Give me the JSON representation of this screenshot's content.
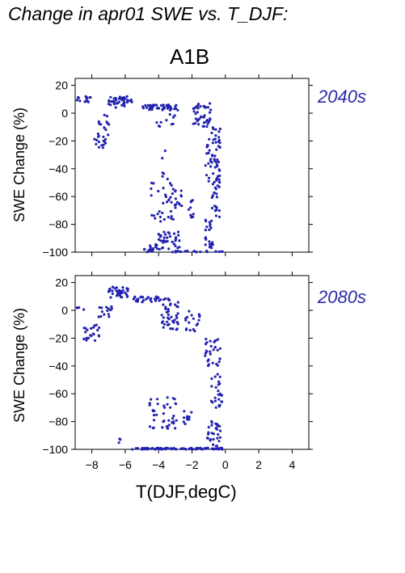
{
  "figure": {
    "title": "Change in apr01 SWE vs. T_DJF:",
    "scenario": "A1B",
    "xlabel": "T(DJF,degC)",
    "ylabel": "SWE Change (%)"
  },
  "colors": {
    "points": "#2222b0",
    "panel_label": "#2a2aa8",
    "axis": "#000000"
  },
  "chart_data": [
    {
      "type": "scatter",
      "panel_label": "2040s",
      "title": "",
      "xlabel": "",
      "ylabel": "SWE Change (%)",
      "xlim": [
        -9,
        5
      ],
      "ylim": [
        -100,
        25
      ],
      "xticks": [
        -8,
        -6,
        -4,
        -2,
        0,
        2,
        4
      ],
      "yticks": [
        20,
        0,
        -20,
        -40,
        -60,
        -80,
        -100
      ],
      "ytick_labels": [
        "20",
        "0",
        "−20",
        "−40",
        "−60",
        "−80",
        "−100"
      ],
      "clusters": [
        {
          "x": [
            -9.0,
            -8.0
          ],
          "y": [
            7,
            12
          ],
          "n": 14
        },
        {
          "x": [
            -8.0,
            -7.0
          ],
          "y": [
            -25,
            -5
          ],
          "n": 20
        },
        {
          "x": [
            -7.0,
            -5.6
          ],
          "y": [
            4,
            12
          ],
          "n": 40
        },
        {
          "x": [
            -7.3,
            -6.9
          ],
          "y": [
            -12,
            0
          ],
          "n": 8
        },
        {
          "x": [
            -5.0,
            -2.8
          ],
          "y": [
            2,
            6
          ],
          "n": 45
        },
        {
          "x": [
            -4.2,
            -2.8
          ],
          "y": [
            -10,
            0
          ],
          "n": 10
        },
        {
          "x": [
            -4.5,
            -2.6
          ],
          "y": [
            -78,
            -50
          ],
          "n": 45
        },
        {
          "x": [
            -3.8,
            -3.4
          ],
          "y": [
            -50,
            -25
          ],
          "n": 6
        },
        {
          "x": [
            -4.2,
            -2.7
          ],
          "y": [
            -98,
            -85
          ],
          "n": 40
        },
        {
          "x": [
            -5.0,
            -4.3
          ],
          "y": [
            -100,
            -95
          ],
          "n": 12
        },
        {
          "x": [
            -2.2,
            -1.9
          ],
          "y": [
            -75,
            -60
          ],
          "n": 10
        },
        {
          "x": [
            -2.0,
            -0.8
          ],
          "y": [
            -10,
            7
          ],
          "n": 40
        },
        {
          "x": [
            -1.2,
            -0.3
          ],
          "y": [
            -50,
            -10
          ],
          "n": 55
        },
        {
          "x": [
            -0.8,
            -0.3
          ],
          "y": [
            -75,
            -45
          ],
          "n": 25
        },
        {
          "x": [
            -1.2,
            -0.7
          ],
          "y": [
            -97,
            -75
          ],
          "n": 22
        },
        {
          "x": [
            -3.2,
            -0.1
          ],
          "y": [
            -100,
            -99
          ],
          "n": 22
        }
      ]
    },
    {
      "type": "scatter",
      "panel_label": "2080s",
      "title": "",
      "xlabel": "T(DJF,degC)",
      "ylabel": "SWE Change (%)",
      "xlim": [
        -9,
        5
      ],
      "ylim": [
        -100,
        25
      ],
      "xticks": [
        -8,
        -6,
        -4,
        -2,
        0,
        2,
        4
      ],
      "xtick_labels": [
        "−8",
        "−6",
        "−4",
        "−2",
        "0",
        "2",
        "4"
      ],
      "yticks": [
        20,
        0,
        -20,
        -40,
        -60,
        -80,
        -100
      ],
      "ytick_labels": [
        "20",
        "0",
        "−20",
        "−40",
        "−60",
        "−80",
        "−100"
      ],
      "clusters": [
        {
          "x": [
            -9.0,
            -8.4
          ],
          "y": [
            0,
            3
          ],
          "n": 4
        },
        {
          "x": [
            -8.5,
            -7.5
          ],
          "y": [
            -22,
            -10
          ],
          "n": 22
        },
        {
          "x": [
            -7.6,
            -6.8
          ],
          "y": [
            -5,
            3
          ],
          "n": 14
        },
        {
          "x": [
            -7.0,
            -5.8
          ],
          "y": [
            9,
            17
          ],
          "n": 40
        },
        {
          "x": [
            -5.5,
            -3.2
          ],
          "y": [
            6,
            10
          ],
          "n": 35
        },
        {
          "x": [
            -3.9,
            -2.8
          ],
          "y": [
            -15,
            7
          ],
          "n": 40
        },
        {
          "x": [
            -2.4,
            -1.5
          ],
          "y": [
            -15,
            0
          ],
          "n": 18
        },
        {
          "x": [
            -4.6,
            -2.8
          ],
          "y": [
            -85,
            -62
          ],
          "n": 40
        },
        {
          "x": [
            -2.5,
            -2.0
          ],
          "y": [
            -82,
            -72
          ],
          "n": 10
        },
        {
          "x": [
            -1.3,
            -0.3
          ],
          "y": [
            -20,
            -40
          ],
          "n": 30
        },
        {
          "x": [
            -0.9,
            -0.2
          ],
          "y": [
            -70,
            -45
          ],
          "n": 25
        },
        {
          "x": [
            -1.1,
            -0.3
          ],
          "y": [
            -98,
            -78
          ],
          "n": 30
        },
        {
          "x": [
            -6.5,
            -6.3
          ],
          "y": [
            -97,
            -92
          ],
          "n": 3
        },
        {
          "x": [
            -5.6,
            -0.1
          ],
          "y": [
            -100,
            -99
          ],
          "n": 90
        }
      ]
    }
  ]
}
